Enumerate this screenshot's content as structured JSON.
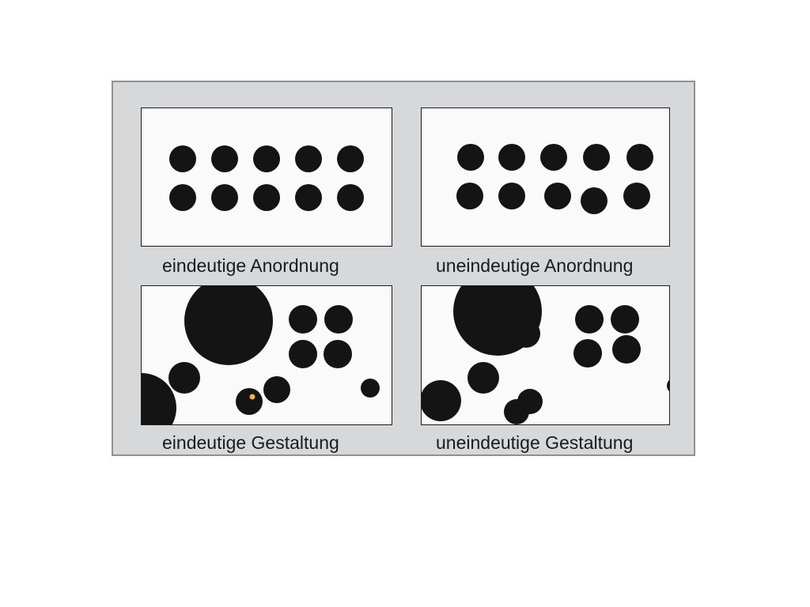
{
  "colors": {
    "frame_background": "#d6d8da",
    "frame_border": "#8e9091",
    "panel_background": "#fafafa",
    "dot": "#141414",
    "highlight": "#e8b64a"
  },
  "panels": [
    {
      "caption": "eindeutige Anordnung"
    },
    {
      "caption": "uneindeutige Anordnung"
    },
    {
      "caption": "eindeutige Gestaltung"
    },
    {
      "caption": "uneindeutige Gestaltung"
    }
  ]
}
